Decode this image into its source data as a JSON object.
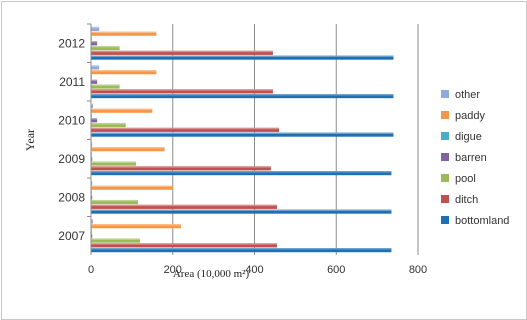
{
  "chart_data": {
    "type": "bar",
    "orientation": "horizontal",
    "title": "",
    "xlabel": "Area (10,000 m²)",
    "ylabel": "Year",
    "xlim": [
      0,
      800
    ],
    "xticks": [
      0,
      200,
      400,
      600,
      800
    ],
    "grid": "vertical",
    "legend_position": "right",
    "categories": [
      "2007",
      "2008",
      "2009",
      "2010",
      "2011",
      "2012"
    ],
    "series": [
      {
        "name": "other",
        "color": "#8EA9DB",
        "values": [
          5,
          3,
          3,
          5,
          20,
          20
        ]
      },
      {
        "name": "paddy",
        "color": "#F79646",
        "values": [
          220,
          200,
          180,
          150,
          160,
          160
        ]
      },
      {
        "name": "digue",
        "color": "#4BACC6",
        "values": [
          2,
          2,
          2,
          2,
          2,
          2
        ]
      },
      {
        "name": "barren",
        "color": "#8064A2",
        "values": [
          3,
          3,
          3,
          15,
          15,
          15
        ]
      },
      {
        "name": "pool",
        "color": "#9BBB59",
        "values": [
          120,
          115,
          110,
          85,
          70,
          70
        ]
      },
      {
        "name": "ditch",
        "color": "#C0504D",
        "values": [
          455,
          455,
          440,
          460,
          445,
          445
        ]
      },
      {
        "name": "bottomland",
        "color": "#1F6FB2",
        "values": [
          735,
          735,
          735,
          740,
          740,
          740
        ]
      }
    ]
  }
}
